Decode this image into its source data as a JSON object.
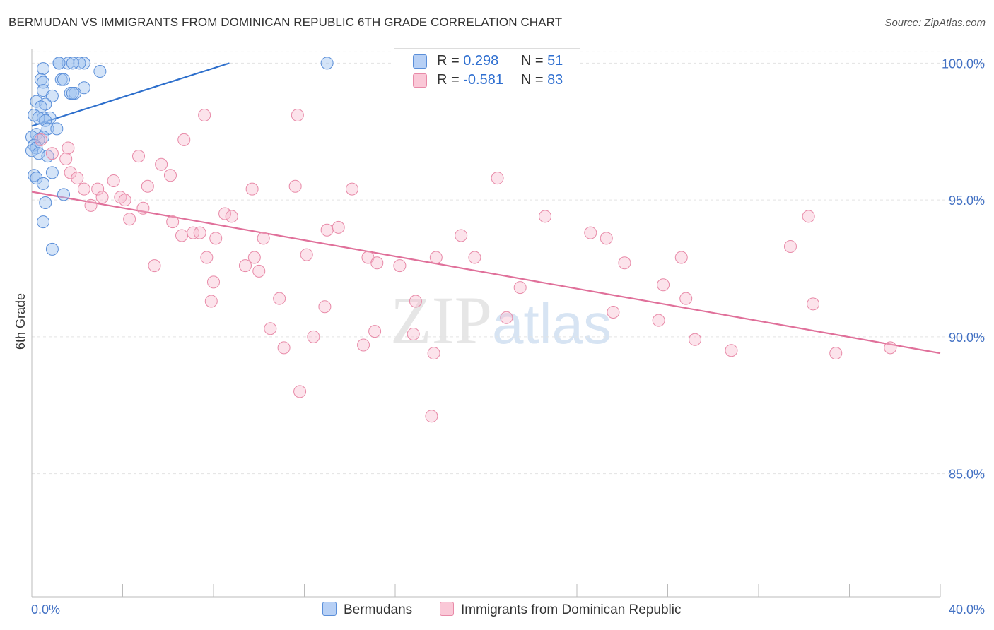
{
  "title": "BERMUDAN VS IMMIGRANTS FROM DOMINICAN REPUBLIC 6TH GRADE CORRELATION CHART",
  "source": "Source: ZipAtlas.com",
  "watermark": {
    "zip": "ZIP",
    "atlas": "atlas"
  },
  "legend": {
    "r_label": "R =",
    "n_label": "N =",
    "series": [
      {
        "name": "Bermudans",
        "r": "0.298",
        "n": "51",
        "fill": "#b7d0f5",
        "stroke": "#5b8fd9"
      },
      {
        "name": "Immigrants from Dominican Republic",
        "r": "-0.581",
        "n": "83",
        "fill": "#fac8d7",
        "stroke": "#e88aa8"
      }
    ]
  },
  "chart_data": {
    "type": "scatter",
    "title": "BERMUDAN VS IMMIGRANTS FROM DOMINICAN REPUBLIC 6TH GRADE CORRELATION CHART",
    "xlabel": "",
    "ylabel": "6th Grade",
    "xlim": [
      0.0,
      40.0
    ],
    "ylim": [
      80.5,
      100.5
    ],
    "x_tick_labels": [
      "0.0%",
      "40.0%"
    ],
    "y_ticks": [
      85.0,
      90.0,
      95.0,
      100.0
    ],
    "y_tick_labels": [
      "85.0%",
      "90.0%",
      "95.0%",
      "100.0%"
    ],
    "grid": true,
    "series": [
      {
        "name": "Bermudans",
        "color": "#4a86d8",
        "trend": {
          "x": [
            0.0,
            8.7
          ],
          "y": [
            97.7,
            100.0
          ]
        },
        "points": [
          [
            1.2,
            100.0
          ],
          [
            1.6,
            100.0
          ],
          [
            2.3,
            100.0
          ],
          [
            2.1,
            100.0
          ],
          [
            1.2,
            100.0
          ],
          [
            1.8,
            100.0
          ],
          [
            13.0,
            100.0
          ],
          [
            0.5,
            99.8
          ],
          [
            3.0,
            99.7
          ],
          [
            0.4,
            99.4
          ],
          [
            1.3,
            99.4
          ],
          [
            1.4,
            99.4
          ],
          [
            0.5,
            99.3
          ],
          [
            2.3,
            99.1
          ],
          [
            0.5,
            99.0
          ],
          [
            1.7,
            98.9
          ],
          [
            1.9,
            98.9
          ],
          [
            1.8,
            98.9
          ],
          [
            0.9,
            98.8
          ],
          [
            0.2,
            98.6
          ],
          [
            0.6,
            98.5
          ],
          [
            0.4,
            98.4
          ],
          [
            0.1,
            98.1
          ],
          [
            0.8,
            98.0
          ],
          [
            0.5,
            98.0
          ],
          [
            0.3,
            98.0
          ],
          [
            0.6,
            97.9
          ],
          [
            0.7,
            97.6
          ],
          [
            1.1,
            97.6
          ],
          [
            0.2,
            97.4
          ],
          [
            0.5,
            97.3
          ],
          [
            0.3,
            97.2
          ],
          [
            0.0,
            97.3
          ],
          [
            0.1,
            97.0
          ],
          [
            0.2,
            96.9
          ],
          [
            0.0,
            96.8
          ],
          [
            0.3,
            96.7
          ],
          [
            0.7,
            96.6
          ],
          [
            0.9,
            96.0
          ],
          [
            0.1,
            95.9
          ],
          [
            0.2,
            95.8
          ],
          [
            0.5,
            95.6
          ],
          [
            0.6,
            94.9
          ],
          [
            1.4,
            95.2
          ],
          [
            0.5,
            94.2
          ],
          [
            0.9,
            93.2
          ]
        ]
      },
      {
        "name": "Immigrants from Dominican Republic",
        "color": "#e8779c",
        "trend": {
          "x": [
            0.0,
            40.0
          ],
          "y": [
            95.3,
            89.4
          ]
        },
        "points": [
          [
            7.6,
            98.1
          ],
          [
            11.7,
            98.1
          ],
          [
            6.7,
            97.2
          ],
          [
            0.4,
            97.2
          ],
          [
            1.6,
            96.9
          ],
          [
            0.9,
            96.7
          ],
          [
            1.5,
            96.5
          ],
          [
            4.7,
            96.6
          ],
          [
            5.7,
            96.3
          ],
          [
            1.7,
            96.0
          ],
          [
            6.1,
            95.9
          ],
          [
            2.0,
            95.8
          ],
          [
            3.6,
            95.7
          ],
          [
            20.5,
            95.8
          ],
          [
            5.1,
            95.5
          ],
          [
            9.7,
            95.4
          ],
          [
            11.6,
            95.5
          ],
          [
            14.1,
            95.4
          ],
          [
            2.3,
            95.4
          ],
          [
            2.9,
            95.4
          ],
          [
            3.1,
            95.1
          ],
          [
            3.9,
            95.1
          ],
          [
            4.1,
            95.0
          ],
          [
            2.6,
            94.8
          ],
          [
            4.9,
            94.7
          ],
          [
            8.5,
            94.5
          ],
          [
            8.8,
            94.4
          ],
          [
            22.6,
            94.4
          ],
          [
            34.2,
            94.4
          ],
          [
            4.3,
            94.3
          ],
          [
            6.2,
            94.2
          ],
          [
            13.0,
            93.9
          ],
          [
            13.5,
            94.0
          ],
          [
            6.6,
            93.7
          ],
          [
            7.1,
            93.8
          ],
          [
            7.4,
            93.8
          ],
          [
            8.1,
            93.6
          ],
          [
            10.2,
            93.6
          ],
          [
            18.9,
            93.7
          ],
          [
            24.6,
            93.8
          ],
          [
            25.3,
            93.6
          ],
          [
            33.4,
            93.3
          ],
          [
            12.1,
            93.0
          ],
          [
            14.8,
            92.9
          ],
          [
            7.7,
            92.9
          ],
          [
            9.8,
            92.9
          ],
          [
            17.8,
            92.9
          ],
          [
            19.5,
            92.9
          ],
          [
            28.6,
            92.9
          ],
          [
            15.2,
            92.7
          ],
          [
            16.2,
            92.6
          ],
          [
            26.1,
            92.7
          ],
          [
            5.4,
            92.6
          ],
          [
            9.4,
            92.6
          ],
          [
            10.0,
            92.4
          ],
          [
            8.0,
            92.0
          ],
          [
            27.8,
            91.9
          ],
          [
            21.5,
            91.8
          ],
          [
            7.9,
            91.3
          ],
          [
            10.9,
            91.4
          ],
          [
            12.9,
            91.1
          ],
          [
            16.9,
            91.3
          ],
          [
            28.8,
            91.4
          ],
          [
            34.4,
            91.2
          ],
          [
            25.6,
            90.9
          ],
          [
            20.9,
            90.7
          ],
          [
            27.6,
            90.6
          ],
          [
            10.5,
            90.3
          ],
          [
            12.4,
            90.0
          ],
          [
            15.1,
            90.2
          ],
          [
            16.8,
            90.1
          ],
          [
            29.2,
            89.9
          ],
          [
            14.6,
            89.7
          ],
          [
            11.1,
            89.6
          ],
          [
            17.7,
            89.4
          ],
          [
            30.8,
            89.5
          ],
          [
            35.4,
            89.4
          ],
          [
            37.8,
            89.6
          ],
          [
            11.8,
            88.0
          ],
          [
            17.6,
            87.1
          ]
        ]
      }
    ]
  }
}
